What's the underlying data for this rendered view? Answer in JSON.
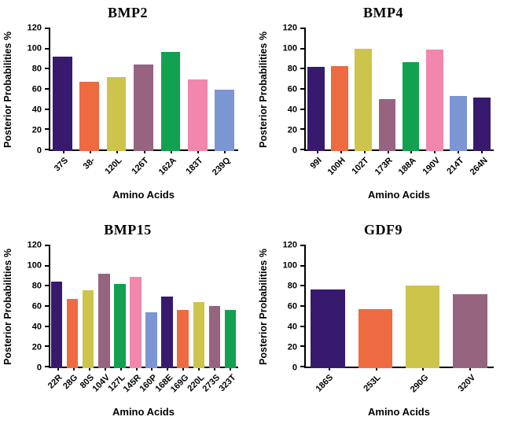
{
  "palette": {
    "purple": "#371A6E",
    "orange": "#EE6A41",
    "khaki": "#CDC44C",
    "mauve": "#97647F",
    "green": "#12A150",
    "pink": "#F287AE",
    "blue": "#7C95D3"
  },
  "axis_color": "#000000",
  "chart_data": [
    {
      "type": "bar",
      "title": "BMP2",
      "xlabel": "Amino Acids",
      "ylabel": "Posterior Probabilities %",
      "ylim": [
        0,
        120
      ],
      "ytick_step": 20,
      "grid": false,
      "legend": "none",
      "categories": [
        "37S",
        "38-",
        "120L",
        "126T",
        "162A",
        "183T",
        "239Q"
      ],
      "values": [
        92,
        68,
        72,
        85,
        97,
        70,
        60
      ],
      "colors": [
        "purple",
        "orange",
        "khaki",
        "mauve",
        "green",
        "pink",
        "blue"
      ]
    },
    {
      "type": "bar",
      "title": "BMP4",
      "xlabel": "Amino Acids",
      "ylabel": "Posterior Probabilities %",
      "ylim": [
        0,
        120
      ],
      "ytick_step": 20,
      "grid": false,
      "legend": "none",
      "categories": [
        "99I",
        "100H",
        "102T",
        "173R",
        "188A",
        "190V",
        "214T",
        "264N"
      ],
      "values": [
        82,
        83,
        100,
        51,
        87,
        99,
        54,
        52
      ],
      "colors": [
        "purple",
        "orange",
        "khaki",
        "mauve",
        "green",
        "pink",
        "blue",
        "purple"
      ]
    },
    {
      "type": "bar",
      "title": "BMP15",
      "xlabel": "Amino Acids",
      "ylabel": "Posterior Probabilities %",
      "ylim": [
        0,
        120
      ],
      "ytick_step": 20,
      "grid": false,
      "legend": "none",
      "categories": [
        "22R",
        "28G",
        "80S",
        "104V",
        "127L",
        "145R",
        "160P",
        "168E",
        "169G",
        "220L",
        "273S",
        "323T"
      ],
      "values": [
        85,
        68,
        76,
        92,
        82,
        89,
        55,
        70,
        57,
        65,
        61,
        57
      ],
      "colors": [
        "purple",
        "orange",
        "khaki",
        "mauve",
        "green",
        "pink",
        "blue",
        "purple",
        "orange",
        "khaki",
        "mauve",
        "green"
      ]
    },
    {
      "type": "bar",
      "title": "GDF9",
      "xlabel": "Amino Acids",
      "ylabel": "Posterior Probabilities %",
      "ylim": [
        0,
        120
      ],
      "ytick_step": 20,
      "grid": false,
      "legend": "none",
      "categories": [
        "186S",
        "253L",
        "290G",
        "320V"
      ],
      "values": [
        77,
        58,
        81,
        72
      ],
      "colors": [
        "purple",
        "orange",
        "khaki",
        "mauve"
      ]
    }
  ]
}
